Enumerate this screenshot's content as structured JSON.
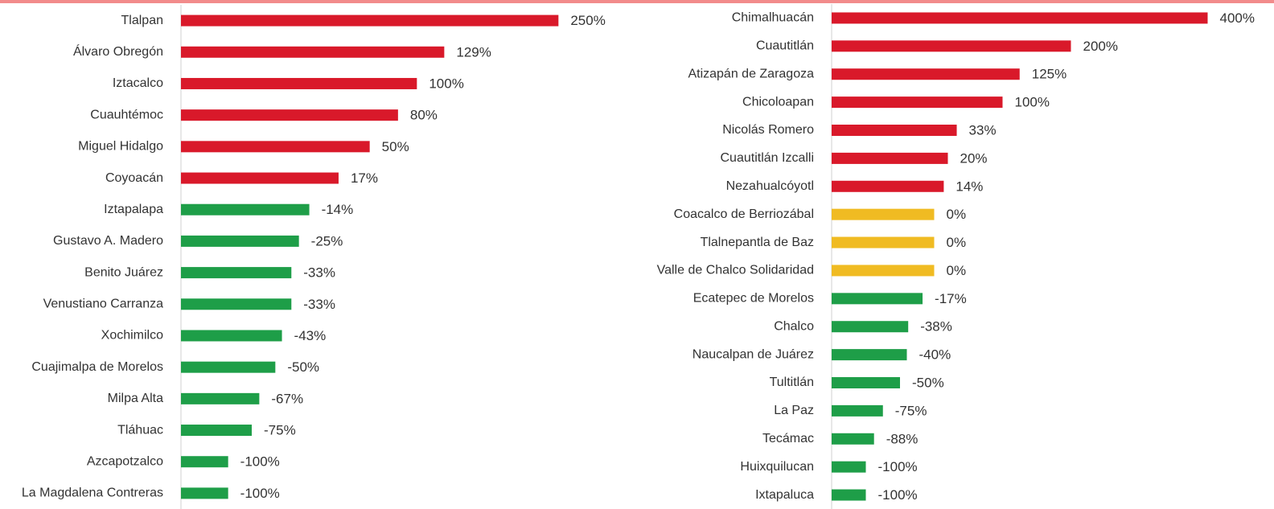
{
  "chart_data": [
    {
      "type": "barh",
      "categories": [
        "Tlalpan",
        "Álvaro Obregón",
        "Iztacalco",
        "Cuauhtémoc",
        "Miguel Hidalgo",
        "Coyoacán",
        "Iztapalapa",
        "Gustavo A. Madero",
        "Benito Juárez",
        "Venustiano Carranza",
        "Xochimilco",
        "Cuajimalpa de Morelos",
        "Milpa Alta",
        "Tláhuac",
        "Azcapotzalco",
        "La Magdalena Contreras"
      ],
      "values": [
        250,
        129,
        100,
        80,
        50,
        17,
        -14,
        -25,
        -33,
        -33,
        -43,
        -50,
        -67,
        -75,
        -100,
        -100
      ],
      "value_labels": [
        "250%",
        "129%",
        "100%",
        "80%",
        "50%",
        "17%",
        "-14%",
        "-25%",
        "-33%",
        "-33%",
        "-43%",
        "-50%",
        "-67%",
        "-75%",
        "-100%",
        "-100%"
      ],
      "color_positive": "#d9192a",
      "color_zero": "#f0bb22",
      "color_negative": "#1e9e48",
      "xlim": [
        -150,
        300
      ]
    },
    {
      "type": "barh",
      "categories": [
        "Chimalhuacán",
        "Cuautitlán",
        "Atizapán de Zaragoza",
        "Chicoloapan",
        "Nicolás Romero",
        "Cuautitlán Izcalli",
        "Nezahualcóyotl",
        "Coacalco de Berriozábal",
        "Tlalnepantla de Baz",
        "Valle de Chalco Solidaridad",
        "Ecatepec de Morelos",
        "Chalco",
        "Naucalpan de Juárez",
        "Tultitlán",
        "La Paz",
        "Tecámac",
        "Huixquilucan",
        "Ixtapaluca"
      ],
      "values": [
        400,
        200,
        125,
        100,
        33,
        20,
        14,
        0,
        0,
        0,
        -17,
        -38,
        -40,
        -50,
        -75,
        -88,
        -100,
        -100
      ],
      "value_labels": [
        "400%",
        "200%",
        "125%",
        "100%",
        "33%",
        "20%",
        "14%",
        "0%",
        "0%",
        "0%",
        "-17%",
        "-38%",
        "-40%",
        "-50%",
        "-75%",
        "-88%",
        "-100%",
        "-100%"
      ],
      "color_positive": "#d9192a",
      "color_zero": "#f0bb22",
      "color_negative": "#1e9e48",
      "xlim": [
        -150,
        450
      ]
    }
  ]
}
